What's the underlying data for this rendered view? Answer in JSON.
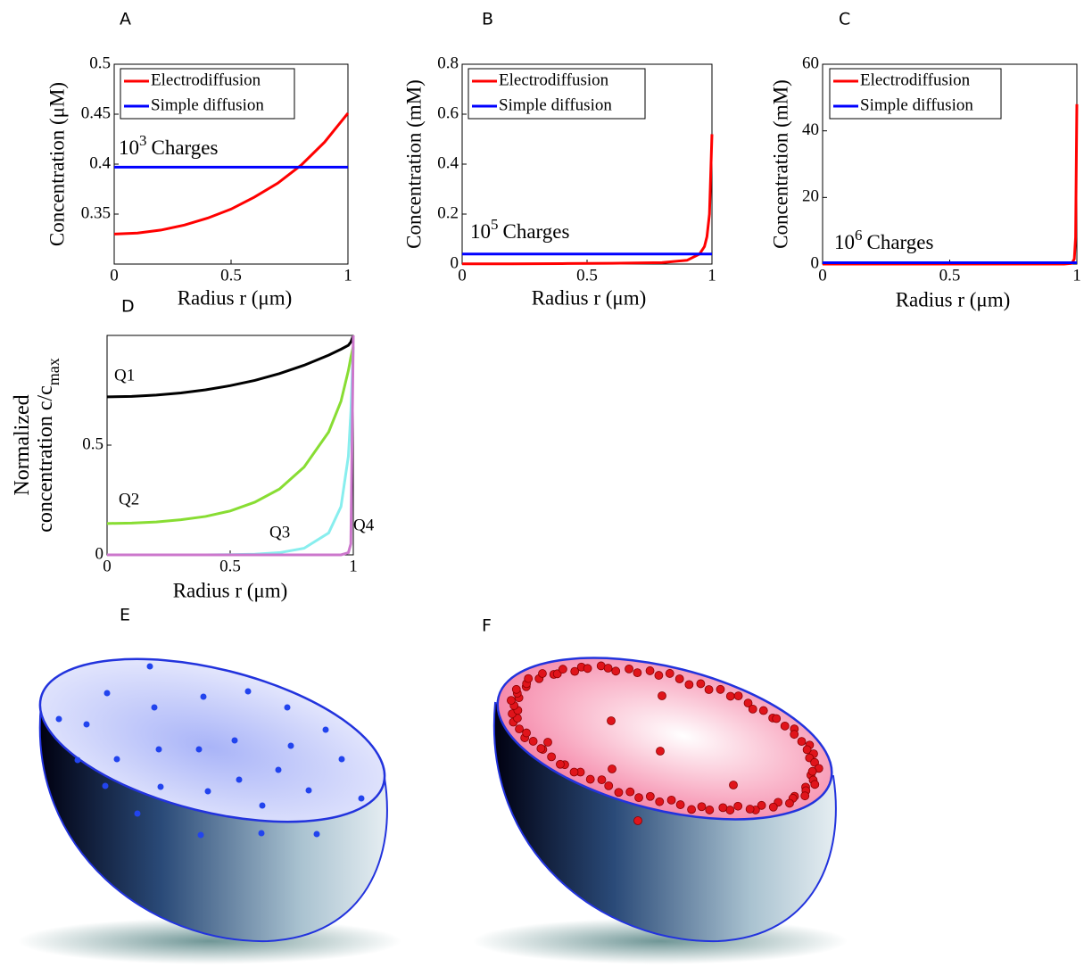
{
  "chart_data": [
    {
      "type": "line",
      "panel": "A",
      "xlabel": "Radius r (μm)",
      "ylabel": "Concentration (μM)",
      "x": [
        0,
        0.1,
        0.2,
        0.3,
        0.4,
        0.5,
        0.6,
        0.7,
        0.8,
        0.9,
        1
      ],
      "series": [
        {
          "name": "Electrodiffusion",
          "color": "#ff0000",
          "values": [
            0.33,
            0.331,
            0.334,
            0.339,
            0.346,
            0.355,
            0.367,
            0.381,
            0.399,
            0.422,
            0.451
          ]
        },
        {
          "name": "Simple diffusion",
          "color": "#0000ff",
          "values": [
            0.397,
            0.397,
            0.397,
            0.397,
            0.397,
            0.397,
            0.397,
            0.397,
            0.397,
            0.397,
            0.397
          ]
        }
      ],
      "xlim": [
        0,
        1
      ],
      "ylim": [
        0.3,
        0.5
      ],
      "xticks": [
        0,
        0.5,
        1
      ],
      "yticks": [
        0.35,
        0.4,
        0.45,
        0.5
      ],
      "legend": "upper left",
      "annotation_base": "10",
      "annotation_exponent": "3",
      "annotation_text": "Charges"
    },
    {
      "type": "line",
      "panel": "B",
      "xlabel": "Radius r (μm)",
      "ylabel": "Concentration (mM)",
      "x": [
        0,
        0.2,
        0.4,
        0.6,
        0.8,
        0.9,
        0.95,
        0.97,
        0.98,
        0.99,
        1
      ],
      "series": [
        {
          "name": "Electrodiffusion",
          "color": "#ff0000",
          "values": [
            0.001,
            0.001,
            0.002,
            0.003,
            0.006,
            0.015,
            0.04,
            0.07,
            0.11,
            0.2,
            0.52
          ]
        },
        {
          "name": "Simple diffusion",
          "color": "#0000ff",
          "values": [
            0.04,
            0.04,
            0.04,
            0.04,
            0.04,
            0.04,
            0.04,
            0.04,
            0.04,
            0.04,
            0.04
          ]
        }
      ],
      "xlim": [
        0,
        1
      ],
      "ylim": [
        0,
        0.8
      ],
      "xticks": [
        0,
        0.5,
        1
      ],
      "yticks": [
        0,
        0.2,
        0.4,
        0.6,
        0.8
      ],
      "legend": "upper left",
      "annotation_base": "10",
      "annotation_exponent": "5",
      "annotation_text": "Charges"
    },
    {
      "type": "line",
      "panel": "C",
      "xlabel": "Radius r (μm)",
      "ylabel": "Concentration (mM)",
      "x": [
        0,
        0.5,
        0.9,
        0.95,
        0.98,
        0.99,
        0.995,
        1
      ],
      "series": [
        {
          "name": "Electrodiffusion",
          "color": "#ff0000",
          "values": [
            0,
            0,
            0.001,
            0.01,
            0.2,
            1.5,
            8,
            48
          ]
        },
        {
          "name": "Simple diffusion",
          "color": "#0000ff",
          "values": [
            0.4,
            0.4,
            0.4,
            0.4,
            0.4,
            0.4,
            0.4,
            0.4
          ]
        }
      ],
      "xlim": [
        0,
        1
      ],
      "ylim": [
        0,
        60
      ],
      "xticks": [
        0,
        0.5,
        1
      ],
      "yticks": [
        0,
        20,
        40,
        60
      ],
      "legend": "upper left",
      "annotation_base": "10",
      "annotation_exponent": "6",
      "annotation_text": "Charges"
    },
    {
      "type": "line",
      "panel": "D",
      "xlabel": "Radius r (μm)",
      "ylabel": [
        "Normalized",
        "concentration c/c"
      ],
      "ylabel_subscript": "max",
      "x": [
        0,
        0.1,
        0.2,
        0.3,
        0.4,
        0.5,
        0.6,
        0.7,
        0.8,
        0.9,
        0.95,
        0.98,
        0.99,
        1
      ],
      "series": [
        {
          "name": "Q1",
          "color": "#000000",
          "values": [
            0.72,
            0.722,
            0.728,
            0.738,
            0.752,
            0.771,
            0.795,
            0.826,
            0.864,
            0.91,
            0.937,
            0.955,
            0.97,
            1
          ]
        },
        {
          "name": "Q2",
          "color": "#88dd33",
          "values": [
            0.143,
            0.145,
            0.15,
            0.16,
            0.175,
            0.2,
            0.24,
            0.3,
            0.4,
            0.56,
            0.7,
            0.84,
            0.9,
            0.95
          ]
        },
        {
          "name": "Q3",
          "color": "#88eeee",
          "values": [
            0,
            0,
            0,
            0,
            0,
            0.001,
            0.003,
            0.01,
            0.03,
            0.1,
            0.22,
            0.45,
            0.65,
            0.95
          ]
        },
        {
          "name": "Q4",
          "color": "#cc77cc",
          "values": [
            0,
            0,
            0,
            0,
            0,
            0,
            0,
            0,
            0,
            0,
            0,
            0.01,
            0.05,
            1
          ]
        }
      ],
      "xlim": [
        0,
        1
      ],
      "ylim": [
        0,
        1
      ],
      "xticks": [
        0,
        0.5,
        1
      ],
      "yticks": [
        0,
        0.5
      ]
    }
  ],
  "illustrations": [
    {
      "panel": "E"
    },
    {
      "panel": "F"
    }
  ]
}
